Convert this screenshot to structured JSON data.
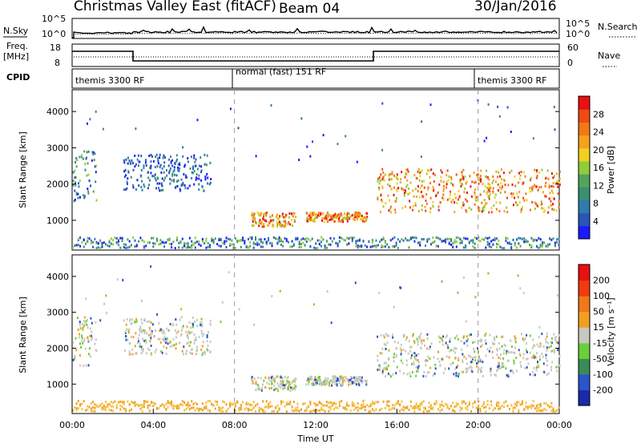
{
  "header": {
    "title": "Christmas Valley East (fitACF)",
    "beam": "Beam 04",
    "date": "30/Jan/2016"
  },
  "panels": {
    "nsky_label": "N.Sky",
    "nsearch_label": "N.Search",
    "nsky_ticks": [
      "10^5",
      "10^0"
    ],
    "nsearch_ticks": [
      "10^5",
      "10^0"
    ],
    "freq_label": "Freq.",
    "freq_unit": "[MHz]",
    "freq_ticks": [
      "18",
      "8"
    ],
    "nave_label": "Nave",
    "nave_ticks": [
      "60",
      "0"
    ],
    "cpid_label": "CPID",
    "cpid_segments": [
      {
        "label": "themis 3300 RF",
        "start_hour": 0
      },
      {
        "label": "normal (fast) 151 RF",
        "start_hour": 8
      },
      {
        "label": "themis 3300 RF",
        "start_hour": 20
      }
    ]
  },
  "chart_data": [
    {
      "type": "heatmap",
      "title": "",
      "ylabel": "Slant Range [km]",
      "yticks": [
        "1000",
        "2000",
        "3000",
        "4000"
      ],
      "ylim": [
        180,
        4600
      ],
      "xlim": [
        0,
        24
      ],
      "colorbar": {
        "label": "Power [dB]",
        "ticks": [
          "4",
          "8",
          "12",
          "16",
          "20",
          "24",
          "28"
        ],
        "colors": [
          "#1a1aff",
          "#2a55b8",
          "#2f7bb0",
          "#3b8f73",
          "#53a35a",
          "#8fce3a",
          "#f0d020",
          "#f5a21a",
          "#f07818",
          "#f04a12",
          "#e81010"
        ]
      },
      "scatter_regions": [
        {
          "t0": 0.0,
          "t1": 1.2,
          "r0": 1500,
          "r1": 2900,
          "level": "mid"
        },
        {
          "t0": 2.5,
          "t1": 6.8,
          "r0": 1800,
          "r1": 2800,
          "level": "low"
        },
        {
          "t0": 8.8,
          "t1": 11.0,
          "r0": 800,
          "r1": 1200,
          "level": "high"
        },
        {
          "t0": 11.5,
          "t1": 14.5,
          "r0": 950,
          "r1": 1200,
          "level": "high"
        },
        {
          "t0": 15.0,
          "t1": 24.0,
          "r0": 1200,
          "r1": 2400,
          "level": "high"
        }
      ]
    },
    {
      "type": "heatmap",
      "title": "",
      "ylabel": "Slant Range [km]",
      "yticks": [
        "1000",
        "2000",
        "3000",
        "4000"
      ],
      "ylim": [
        180,
        4600
      ],
      "xlim": [
        0,
        24
      ],
      "xticks": [
        "00:00",
        "04:00",
        "08:00",
        "12:00",
        "16:00",
        "20:00",
        "00:00"
      ],
      "xlabel": "Time UT",
      "colorbar": {
        "label": "Velocity [m s⁻¹]",
        "ticks": [
          "200",
          "100",
          "50",
          "15",
          "-15",
          "-50",
          "-100",
          "-200"
        ],
        "colors": [
          "#1a2aaa",
          "#2a55c8",
          "#3a8a5a",
          "#6ccf3a",
          "#c8c8c0",
          "#f0a020",
          "#f07818",
          "#f03a12",
          "#e81010"
        ]
      }
    }
  ]
}
